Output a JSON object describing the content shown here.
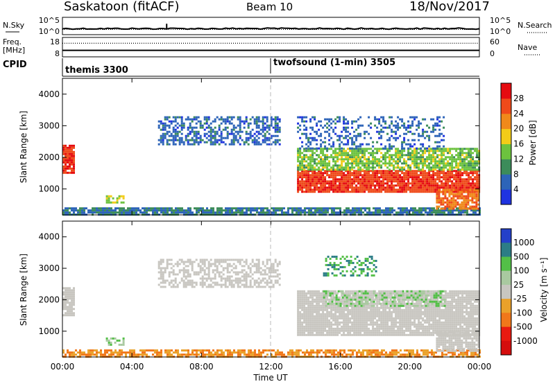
{
  "header": {
    "station": "Saskatoon (fitACF)",
    "beam": "Beam 10",
    "date": "18/Nov/2017"
  },
  "noise_panel": {
    "left_label": "N.Sky",
    "left_ticks": [
      "10^5",
      "10^0"
    ],
    "right_label": "N.Search",
    "right_ticks": [
      "10^5",
      "10^0"
    ]
  },
  "freq_panel": {
    "left_label_1": "Freq.",
    "left_label_2": "[MHz]",
    "left_ticks": [
      "18",
      "8"
    ],
    "right_label": "Nave",
    "right_ticks": [
      "60",
      "0"
    ]
  },
  "cpid_panel": {
    "label": "CPID",
    "segments": [
      {
        "name": "themis 3300",
        "start_hour": 0
      },
      {
        "name": "twofsound (1-min) 3505",
        "start_hour": 12
      }
    ]
  },
  "x_axis": {
    "label": "Time UT",
    "range_hours": [
      0,
      24
    ],
    "ticks": [
      "00:00",
      "04:00",
      "08:00",
      "12:00",
      "16:00",
      "20:00",
      "00:00"
    ],
    "tick_hours": [
      0,
      4,
      8,
      12,
      16,
      20,
      24
    ]
  },
  "chart_data": [
    {
      "type": "heatmap",
      "title": "Power",
      "ylabel": "Slant Range [km]",
      "xlabel": "",
      "ylim": [
        180,
        4500
      ],
      "yticks": [
        1000,
        2000,
        3000,
        4000
      ],
      "colorbar": {
        "label": "Power [dB]",
        "range": [
          0,
          32
        ],
        "ticks": [
          4,
          8,
          12,
          16,
          20,
          24,
          28
        ],
        "colors": [
          "#1f33e0",
          "#2d64b8",
          "#3c8c5a",
          "#6cc23e",
          "#f2cc18",
          "#f0891a",
          "#ef4a1a",
          "#e50b10"
        ]
      },
      "regions": [
        {
          "name": "near-range band",
          "hours": [
            0,
            24
          ],
          "range_km": [
            200,
            420
          ],
          "level": 8,
          "density": 0.85
        },
        {
          "name": "early echo",
          "hours": [
            0,
            0.6
          ],
          "range_km": [
            1500,
            2400
          ],
          "level": 28,
          "density": 0.9
        },
        {
          "name": "morning patch",
          "hours": [
            2.5,
            3.5
          ],
          "range_km": [
            600,
            800
          ],
          "level": 16,
          "density": 0.6
        },
        {
          "name": "scattered far range",
          "hours": [
            5.5,
            12.5
          ],
          "range_km": [
            2400,
            3300
          ],
          "level": 6,
          "density": 0.55
        },
        {
          "name": "afternoon main",
          "hours": [
            13.5,
            24
          ],
          "range_km": [
            900,
            1600
          ],
          "level": 27,
          "density": 0.92
        },
        {
          "name": "afternoon upper",
          "hours": [
            13.5,
            24
          ],
          "range_km": [
            1600,
            2300
          ],
          "level": 14,
          "density": 0.75
        },
        {
          "name": "afternoon far",
          "hours": [
            13.5,
            22
          ],
          "range_km": [
            2300,
            3300
          ],
          "level": 6,
          "density": 0.35
        },
        {
          "name": "late near",
          "hours": [
            21.5,
            24
          ],
          "range_km": [
            400,
            1000
          ],
          "level": 24,
          "density": 0.8
        }
      ]
    },
    {
      "type": "heatmap",
      "title": "Velocity",
      "ylabel": "Slant Range [km]",
      "xlabel": "Time UT",
      "ylim": [
        180,
        4500
      ],
      "yticks": [
        1000,
        2000,
        3000,
        4000
      ],
      "colorbar": {
        "label": "Velocity [m s⁻¹]",
        "labels": [
          "1000",
          "500",
          "100",
          "25",
          "-25",
          "-100",
          "-500",
          "-1000"
        ],
        "colors": [
          "#2440c9",
          "#2c7d86",
          "#53bf47",
          "#a9c9a0",
          "#c8c6c0",
          "#eaa12a",
          "#f0771a",
          "#e81a10",
          "#d50d0d"
        ]
      },
      "regions": [
        {
          "name": "near-range band",
          "hours": [
            0,
            24
          ],
          "range_km": [
            200,
            420
          ],
          "level": -100,
          "density": 0.7
        },
        {
          "name": "early echo",
          "hours": [
            0,
            0.6
          ],
          "range_km": [
            1500,
            2400
          ],
          "level": 0,
          "density": 0.85
        },
        {
          "name": "morning patch",
          "hours": [
            2.5,
            3.5
          ],
          "range_km": [
            600,
            800
          ],
          "level": 100,
          "density": 0.55
        },
        {
          "name": "scattered far range",
          "hours": [
            5.5,
            12.5
          ],
          "range_km": [
            2400,
            3300
          ],
          "level": 0,
          "density": 0.55
        },
        {
          "name": "afternoon main",
          "hours": [
            13.5,
            24
          ],
          "range_km": [
            900,
            2300
          ],
          "level": 0,
          "density": 0.92
        },
        {
          "name": "afternoon upper",
          "hours": [
            15,
            22
          ],
          "range_km": [
            1800,
            2300
          ],
          "level": 100,
          "density": 0.4
        },
        {
          "name": "afternoon far",
          "hours": [
            15,
            18
          ],
          "range_km": [
            2800,
            3400
          ],
          "level": 500,
          "density": 0.35
        },
        {
          "name": "late near",
          "hours": [
            21.5,
            24
          ],
          "range_km": [
            400,
            1000
          ],
          "level": 0,
          "density": 0.8
        }
      ]
    }
  ],
  "noise_series": {
    "sky_level": 0.35,
    "search_level": 0.3
  },
  "freq_series": {
    "freq_level": 0.55,
    "nave_level_first": 0.35,
    "nave_level_second": 0.15
  }
}
